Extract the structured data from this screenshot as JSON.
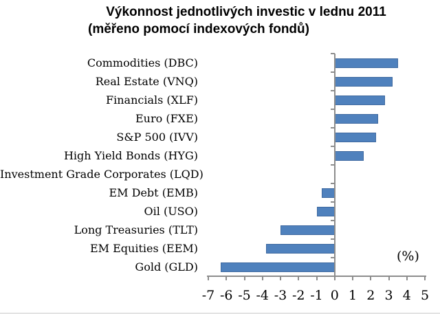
{
  "title": {
    "line1": "Výkonnost jednotlivých investic v lednu 2011",
    "line2": "(měřeno pomocí indexových fondů)"
  },
  "chart_data": {
    "type": "bar",
    "orientation": "horizontal",
    "title": "Výkonnost jednotlivých investic v lednu 2011",
    "subtitle": "(měřeno pomocí indexových fondů)",
    "unit_label": "(%)",
    "categories": [
      "Commodities (DBC)",
      "Real Estate (VNQ)",
      "Financials (XLF)",
      "Euro (FXE)",
      "S&P 500 (IVV)",
      "High Yield Bonds (HYG)",
      "Investment Grade Corporates (LQD)",
      "EM Debt (EMB)",
      "Oil (USO)",
      "Long Treasuries (TLT)",
      "EM Equities (EEM)",
      "Gold (GLD)"
    ],
    "values": [
      3.5,
      3.2,
      2.8,
      2.4,
      2.3,
      1.6,
      0,
      -0.7,
      -1.0,
      -3.0,
      -3.8,
      -6.3
    ],
    "xlim": [
      -7,
      5
    ],
    "x_ticks": [
      "-7",
      "-6",
      "-5",
      "-4",
      "-3",
      "-2",
      "-1",
      "0",
      "1",
      "2",
      "3",
      "4",
      "5"
    ],
    "grid": false,
    "legend": false,
    "bar_color": "#4f81bd",
    "bar_border_color": "#3d689f",
    "axis_color": "#8c8c8c"
  }
}
